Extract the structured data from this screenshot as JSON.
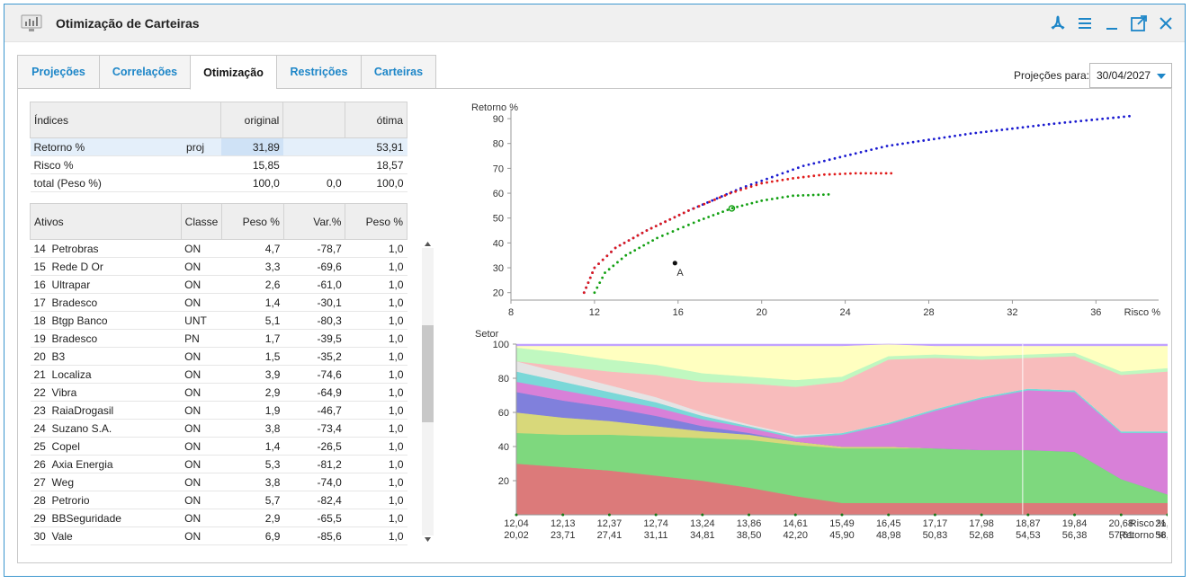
{
  "window": {
    "title": "Otimização de Carteiras"
  },
  "tabs": [
    {
      "label": "Projeções",
      "active": false
    },
    {
      "label": "Correlações",
      "active": false
    },
    {
      "label": "Otimização",
      "active": true
    },
    {
      "label": "Restrições",
      "active": false
    },
    {
      "label": "Carteiras",
      "active": false
    }
  ],
  "projection": {
    "label": "Projeções para:",
    "date": "30/04/2027"
  },
  "indices": {
    "headers": [
      "Índices",
      "original",
      "",
      "ótima"
    ],
    "rows": [
      {
        "name": "Retorno %",
        "tag": "proj",
        "original": "31,89",
        "mid": "",
        "otima": "53,91"
      },
      {
        "name": "Risco %",
        "tag": "",
        "original": "15,85",
        "mid": "",
        "otima": "18,57"
      },
      {
        "name": "total (Peso %)",
        "tag": "",
        "original": "100,0",
        "mid": "0,0",
        "otima": "100,0"
      }
    ]
  },
  "assets": {
    "headers": [
      "Ativos",
      "Classe",
      "Peso %",
      "Var.%",
      "Peso %"
    ],
    "rows": [
      {
        "n": "14",
        "name": "Petrobras",
        "classe": "ON",
        "peso": "4,7",
        "var": "-78,7",
        "peso2": "1,0"
      },
      {
        "n": "15",
        "name": "Rede D Or",
        "classe": "ON",
        "peso": "3,3",
        "var": "-69,6",
        "peso2": "1,0"
      },
      {
        "n": "16",
        "name": "Ultrapar",
        "classe": "ON",
        "peso": "2,6",
        "var": "-61,0",
        "peso2": "1,0"
      },
      {
        "n": "17",
        "name": "Bradesco",
        "classe": "ON",
        "peso": "1,4",
        "var": "-30,1",
        "peso2": "1,0"
      },
      {
        "n": "18",
        "name": "Btgp Banco",
        "classe": "UNT",
        "peso": "5,1",
        "var": "-80,3",
        "peso2": "1,0"
      },
      {
        "n": "19",
        "name": "Bradesco",
        "classe": "PN",
        "peso": "1,7",
        "var": "-39,5",
        "peso2": "1,0"
      },
      {
        "n": "20",
        "name": "B3",
        "classe": "ON",
        "peso": "1,5",
        "var": "-35,2",
        "peso2": "1,0"
      },
      {
        "n": "21",
        "name": "Localiza",
        "classe": "ON",
        "peso": "3,9",
        "var": "-74,6",
        "peso2": "1,0"
      },
      {
        "n": "22",
        "name": "Vibra",
        "classe": "ON",
        "peso": "2,9",
        "var": "-64,9",
        "peso2": "1,0"
      },
      {
        "n": "23",
        "name": "RaiaDrogasil",
        "classe": "ON",
        "peso": "1,9",
        "var": "-46,7",
        "peso2": "1,0"
      },
      {
        "n": "24",
        "name": "Suzano S.A.",
        "classe": "ON",
        "peso": "3,8",
        "var": "-73,4",
        "peso2": "1,0"
      },
      {
        "n": "25",
        "name": "Copel",
        "classe": "ON",
        "peso": "1,4",
        "var": "-26,5",
        "peso2": "1,0"
      },
      {
        "n": "26",
        "name": "Axia Energia",
        "classe": "ON",
        "peso": "5,3",
        "var": "-81,2",
        "peso2": "1,0"
      },
      {
        "n": "27",
        "name": "Weg",
        "classe": "ON",
        "peso": "3,8",
        "var": "-74,0",
        "peso2": "1,0"
      },
      {
        "n": "28",
        "name": "Petrorio",
        "classe": "ON",
        "peso": "5,7",
        "var": "-82,4",
        "peso2": "1,0"
      },
      {
        "n": "29",
        "name": "BBSeguridade",
        "classe": "ON",
        "peso": "2,9",
        "var": "-65,5",
        "peso2": "1,0"
      },
      {
        "n": "30",
        "name": "Vale",
        "classe": "ON",
        "peso": "6,9",
        "var": "-85,6",
        "peso2": "1,0"
      }
    ]
  },
  "chart_data": [
    {
      "type": "scatter",
      "ylabel": "Retorno %",
      "xlabel": "Risco %",
      "xlim": [
        8,
        39
      ],
      "ylim": [
        17,
        94
      ],
      "xticks": [
        8,
        12,
        16,
        20,
        24,
        28,
        32,
        36
      ],
      "yticks": [
        20,
        30,
        40,
        50,
        60,
        70,
        80,
        90
      ],
      "series": [
        {
          "color": "#1a1ad0",
          "x": [
            11.5,
            12.0,
            13.0,
            14.5,
            16.5,
            19.0,
            22.0,
            26.0,
            30.0,
            34.0,
            37.6
          ],
          "y": [
            20,
            30,
            38,
            45,
            53,
            62,
            71,
            79,
            84,
            88,
            91
          ]
        },
        {
          "color": "#e01a1a",
          "x": [
            11.5,
            12.0,
            13.0,
            14.5,
            16.5,
            18.5,
            20.0,
            21.5,
            23.0,
            24.5,
            26.2
          ],
          "y": [
            20,
            30,
            38,
            45,
            53,
            60,
            64,
            66,
            67.5,
            68,
            68
          ]
        },
        {
          "color": "#12a012",
          "x": [
            12.0,
            12.5,
            13.5,
            15.0,
            17.0,
            18.6,
            20.0,
            21.5,
            23.2
          ],
          "y": [
            20,
            28,
            35,
            42,
            49,
            54,
            57,
            59,
            59.5
          ]
        }
      ],
      "points": [
        {
          "label": "A",
          "x": 15.85,
          "y": 31.89,
          "color": "#111111"
        },
        {
          "label": "",
          "x": 18.57,
          "y": 53.91,
          "color": "#12a012"
        }
      ]
    },
    {
      "type": "area",
      "ylabel": "Setor",
      "ylim": [
        0,
        100
      ],
      "yticks": [
        20,
        40,
        60,
        80,
        100
      ],
      "x_risk": [
        "12,04",
        "12,13",
        "12,37",
        "12,74",
        "13,24",
        "13,86",
        "14,61",
        "15,49",
        "16,45",
        "17,17",
        "17,98",
        "18,87",
        "19,84",
        "20,68",
        "21,67"
      ],
      "x_return": [
        "20,02",
        "23,71",
        "27,41",
        "31,11",
        "34,81",
        "38,50",
        "42,20",
        "45,90",
        "48,98",
        "50,83",
        "52,68",
        "54,53",
        "56,38",
        "57,61",
        "58,53"
      ],
      "xlabel_risk": "Risco %",
      "xlabel_return": "Retorno %",
      "highlight_index": 11,
      "series": [
        {
          "color": "#dc7a7a",
          "values": [
            30,
            28,
            26,
            23,
            20,
            16,
            11,
            7,
            7,
            7,
            7,
            7,
            7,
            7,
            7
          ]
        },
        {
          "color": "#7ed87e",
          "values": [
            18,
            19,
            21,
            23,
            25,
            28,
            30,
            32,
            32,
            32,
            31,
            31,
            30,
            14,
            5
          ]
        },
        {
          "color": "#d8d87a",
          "values": [
            12,
            10,
            8,
            6,
            4,
            3,
            2,
            1,
            1,
            0,
            0,
            0,
            0,
            0,
            0
          ]
        },
        {
          "color": "#8080dc",
          "values": [
            12,
            10,
            8,
            6,
            3,
            1,
            0,
            0,
            0,
            0,
            0,
            0,
            0,
            0,
            0
          ]
        },
        {
          "color": "#d880d8",
          "values": [
            6,
            6,
            5,
            5,
            4,
            3,
            2,
            7,
            13,
            22,
            30,
            35,
            35,
            27,
            36
          ]
        },
        {
          "color": "#7ad8d8",
          "values": [
            6,
            5,
            4,
            3,
            2,
            1,
            1,
            1,
            1,
            1,
            1,
            1,
            1,
            1,
            1
          ]
        },
        {
          "color": "#e4e4e4",
          "values": [
            6,
            5,
            4,
            3,
            2,
            1,
            1,
            0,
            0,
            0,
            0,
            0,
            0,
            0,
            0
          ]
        },
        {
          "color": "#f8bcbc",
          "values": [
            0,
            4,
            8,
            13,
            18,
            24,
            28,
            30,
            37,
            30,
            22,
            18,
            20,
            33,
            35
          ]
        },
        {
          "color": "#c0f8c0",
          "values": [
            8,
            8,
            7,
            6,
            5,
            4,
            4,
            3,
            2,
            2,
            2,
            2,
            2,
            2,
            2
          ]
        },
        {
          "color": "#ffffc0",
          "values": [
            1,
            4,
            8,
            11,
            16,
            18,
            20,
            18,
            7,
            5,
            6,
            5,
            4,
            15,
            13
          ]
        },
        {
          "color": "#c0a0ff",
          "values": [
            1,
            1,
            1,
            1,
            1,
            1,
            1,
            1,
            1,
            1,
            1,
            1,
            1,
            1,
            1
          ]
        }
      ]
    }
  ]
}
